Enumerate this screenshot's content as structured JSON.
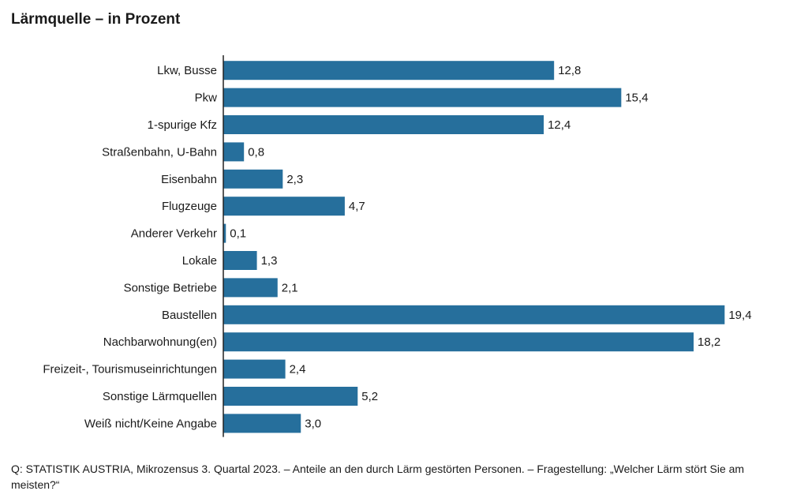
{
  "title": "Lärmquelle – in Prozent",
  "footer": "Q: STATISTIK AUSTRIA, Mikrozensus 3. Quartal 2023. – Anteile an den durch Lärm gestörten Personen. – Fragestellung: „Welcher Lärm stört Sie am meisten?“",
  "colors": {
    "bar": "#266f9c",
    "axis": "#222222",
    "text": "#1a1a1a"
  },
  "chart_data": {
    "type": "bar",
    "orientation": "horizontal",
    "categories": [
      "Lkw, Busse",
      "Pkw",
      "1-spurige Kfz",
      "Straßenbahn, U-Bahn",
      "Eisenbahn",
      "Flugzeuge",
      "Anderer Verkehr",
      "Lokale",
      "Sonstige Betriebe",
      "Baustellen",
      "Nachbarwohnung(en)",
      "Freizeit-, Tourismuseinrichtungen",
      "Sonstige Lärmquellen",
      "Weiß nicht/Keine Angabe"
    ],
    "values": [
      12.8,
      15.4,
      12.4,
      0.8,
      2.3,
      4.7,
      0.1,
      1.3,
      2.1,
      19.4,
      18.2,
      2.4,
      5.2,
      3.0
    ],
    "value_labels": [
      "12,8",
      "15,4",
      "12,4",
      "0,8",
      "2,3",
      "4,7",
      "0,1",
      "1,3",
      "2,1",
      "19,4",
      "18,2",
      "2,4",
      "5,2",
      "3,0"
    ],
    "xlim": [
      0,
      20
    ],
    "grid": false,
    "legend": "none"
  }
}
